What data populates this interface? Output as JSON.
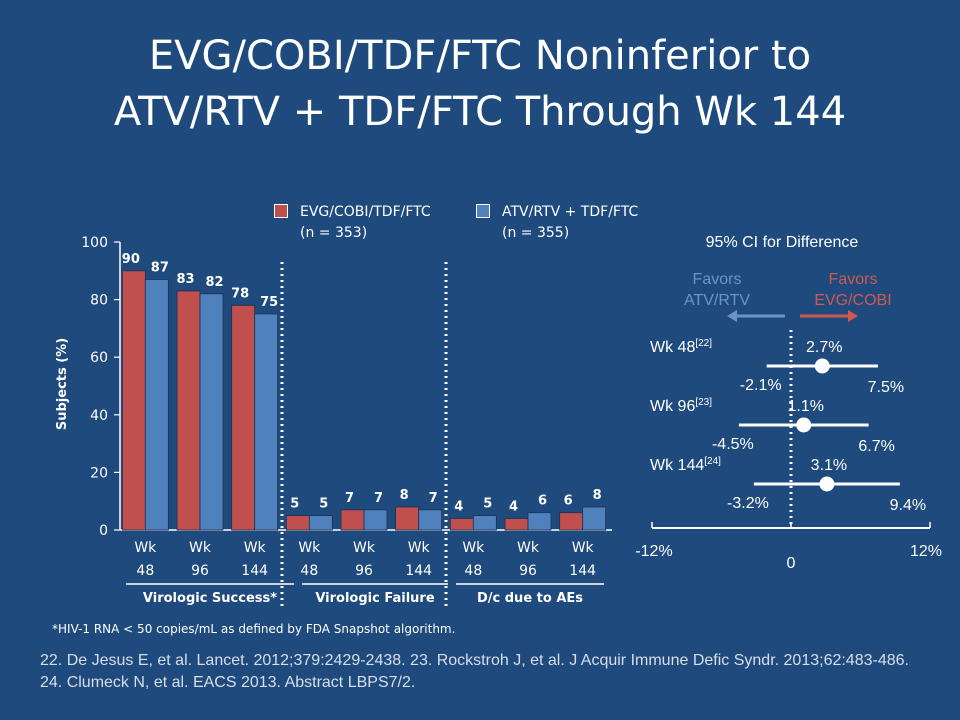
{
  "slide": {
    "title_line1": "EVG/COBI/TDF/FTC Noninferior to",
    "title_line2": "ATV/RTV + TDF/FTC Through Wk 144",
    "footnote": "*HIV-1 RNA < 50 copies/mL as defined by FDA Snapshot algorithm.",
    "references": "22. De Jesus E, et al. Lancet. 2012;379:2429-2438. 23. Rockstroh J, et al. J Acquir Immune Defic Syndr. 2013;62:483-486. 24. Clumeck N, et al. EACS 2013. Abstract LBPS7/2."
  },
  "colors": {
    "background": "#1e4a7d",
    "evg": "#c0504d",
    "atv": "#4f81bd",
    "favors_atv": "#6d93c9",
    "favors_evg": "#d05a4e"
  },
  "legend": [
    {
      "label": "EVG/COBI/TDF/FTC",
      "n": "(n = 353)",
      "color": "#c0504d"
    },
    {
      "label": "ATV/RTV + TDF/FTC",
      "n": "(n = 355)",
      "color": "#4f81bd"
    }
  ],
  "chart_data": [
    {
      "type": "bar",
      "ylabel": "Subjects (%)",
      "ylim": [
        0,
        100
      ],
      "yticks": [
        "0",
        "20",
        "40",
        "60",
        "80",
        "100"
      ],
      "categories": [
        {
          "wk": "Wk",
          "num": "48"
        },
        {
          "wk": "Wk",
          "num": "96"
        },
        {
          "wk": "Wk",
          "num": "144"
        },
        {
          "wk": "Wk",
          "num": "48"
        },
        {
          "wk": "Wk",
          "num": "96"
        },
        {
          "wk": "Wk",
          "num": "144"
        },
        {
          "wk": "Wk",
          "num": "48"
        },
        {
          "wk": "Wk",
          "num": "96"
        },
        {
          "wk": "Wk",
          "num": "144"
        }
      ],
      "groups": [
        "Virologic Success*",
        "Virologic Failure",
        "D/c due to AEs"
      ],
      "series": [
        {
          "name": "EVG/COBI/TDF/FTC",
          "values": [
            90,
            83,
            78,
            5,
            7,
            8,
            4,
            4,
            6
          ],
          "labels": [
            "90",
            "83",
            "78",
            "5",
            "7",
            "8",
            "4",
            "4",
            "6"
          ]
        },
        {
          "name": "ATV/RTV + TDF/FTC",
          "values": [
            87,
            82,
            75,
            5,
            7,
            7,
            5,
            6,
            8
          ],
          "labels": [
            "87",
            "82",
            "75",
            "5",
            "7",
            "7",
            "5",
            "6",
            "8"
          ]
        }
      ]
    },
    {
      "type": "forest",
      "title": "95% CI for Difference",
      "favors_left": [
        "Favors",
        "ATV/RTV"
      ],
      "favors_right": [
        "Favors",
        "EVG/COBI"
      ],
      "xlim": [
        -12,
        12
      ],
      "xticks": [
        "-12%",
        "0",
        "12%"
      ],
      "rows": [
        {
          "label": "Wk 48",
          "ref": "[22]",
          "point": 2.7,
          "lower": -2.1,
          "upper": 7.5,
          "point_label": "2.7%",
          "lower_label": "-2.1%",
          "upper_label": "7.5%"
        },
        {
          "label": "Wk 96",
          "ref": "[23]",
          "point": 1.1,
          "lower": -4.5,
          "upper": 6.7,
          "point_label": "1.1%",
          "lower_label": "-4.5%",
          "upper_label": "6.7%"
        },
        {
          "label": "Wk 144",
          "ref": "[24]",
          "point": 3.1,
          "lower": -3.2,
          "upper": 9.4,
          "point_label": "3.1%",
          "lower_label": "-3.2%",
          "upper_label": "9.4%"
        }
      ]
    }
  ]
}
